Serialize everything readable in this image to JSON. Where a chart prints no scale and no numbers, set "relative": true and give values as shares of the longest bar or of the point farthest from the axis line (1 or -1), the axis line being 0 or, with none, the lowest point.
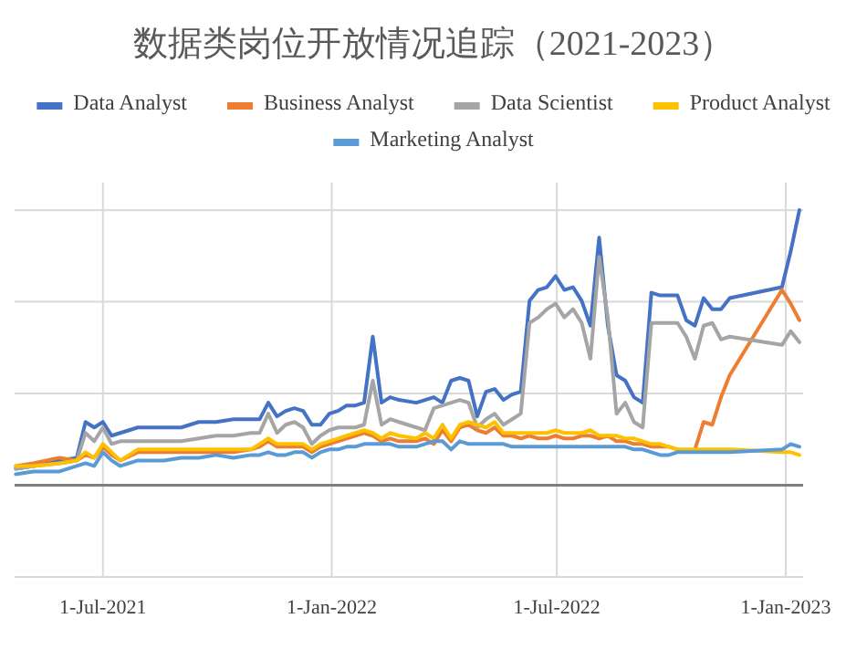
{
  "chart_data": {
    "type": "line",
    "title": "数据类岗位开放情况追踪（2021-2023）",
    "relative": true,
    "grid": true,
    "legend": "top",
    "line_style": "solid",
    "x": [
      "2021-04-22",
      "2021-05-06",
      "2021-05-27",
      "2021-06-10",
      "2021-06-17",
      "2021-06-24",
      "2021-07-01",
      "2021-07-08",
      "2021-07-15",
      "2021-07-29",
      "2021-08-19",
      "2021-09-02",
      "2021-09-16",
      "2021-09-30",
      "2021-10-14",
      "2021-10-28",
      "2021-11-04",
      "2021-11-11",
      "2021-11-18",
      "2021-11-25",
      "2021-12-02",
      "2021-12-09",
      "2021-12-16",
      "2021-12-23",
      "2021-12-30",
      "2022-01-06",
      "2022-01-13",
      "2022-01-20",
      "2022-01-27",
      "2022-02-03",
      "2022-02-10",
      "2022-02-17",
      "2022-02-24",
      "2022-03-10",
      "2022-03-17",
      "2022-03-24",
      "2022-03-31",
      "2022-04-07",
      "2022-04-14",
      "2022-04-21",
      "2022-04-28",
      "2022-05-05",
      "2022-05-12",
      "2022-05-19",
      "2022-05-26",
      "2022-06-02",
      "2022-06-09",
      "2022-06-16",
      "2022-06-23",
      "2022-06-30",
      "2022-07-07",
      "2022-07-14",
      "2022-07-21",
      "2022-07-28",
      "2022-08-04",
      "2022-08-11",
      "2022-08-18",
      "2022-08-25",
      "2022-09-01",
      "2022-09-08",
      "2022-09-15",
      "2022-09-22",
      "2022-09-29",
      "2022-10-06",
      "2022-10-13",
      "2022-10-20",
      "2022-10-27",
      "2022-11-03",
      "2022-11-10",
      "2022-11-17",
      "2022-12-29",
      "2023-01-05",
      "2023-01-12"
    ],
    "xlim": [
      "2021-04-21",
      "2023-01-15"
    ],
    "xticks": [
      {
        "value": "2021-07-01",
        "label": "1-Jul-2021"
      },
      {
        "value": "2022-01-01",
        "label": "1-Jan-2022"
      },
      {
        "value": "2022-07-01",
        "label": "1-Jul-2022"
      },
      {
        "value": "2023-01-01",
        "label": "1-Jan-2023"
      }
    ],
    "series": [
      {
        "name": "Data Analyst",
        "color": "#4472c4",
        "values": [
          0.06,
          0.07,
          0.09,
          0.1,
          0.23,
          0.21,
          0.23,
          0.18,
          0.19,
          0.21,
          0.21,
          0.21,
          0.23,
          0.23,
          0.24,
          0.24,
          0.24,
          0.3,
          0.25,
          0.27,
          0.28,
          0.27,
          0.22,
          0.22,
          0.26,
          0.27,
          0.29,
          0.29,
          0.3,
          0.54,
          0.3,
          0.32,
          0.31,
          0.3,
          0.31,
          0.32,
          0.3,
          0.38,
          0.39,
          0.38,
          0.25,
          0.34,
          0.35,
          0.31,
          0.33,
          0.34,
          0.67,
          0.71,
          0.72,
          0.76,
          0.71,
          0.72,
          0.67,
          0.58,
          0.9,
          0.58,
          0.4,
          0.38,
          0.32,
          0.3,
          0.7,
          0.69,
          0.69,
          0.69,
          0.6,
          0.58,
          0.68,
          0.64,
          0.64,
          0.68,
          0.72,
          0.85,
          1.0
        ]
      },
      {
        "name": "Business Analyst",
        "color": "#ed7d31",
        "values": [
          0.07,
          0.08,
          0.1,
          0.09,
          0.11,
          0.1,
          0.14,
          0.11,
          0.09,
          0.12,
          0.12,
          0.12,
          0.12,
          0.12,
          0.12,
          0.13,
          0.14,
          0.16,
          0.14,
          0.14,
          0.14,
          0.14,
          0.12,
          0.14,
          0.15,
          0.16,
          0.17,
          0.18,
          0.19,
          0.18,
          0.16,
          0.17,
          0.16,
          0.16,
          0.17,
          0.15,
          0.2,
          0.16,
          0.21,
          0.22,
          0.2,
          0.19,
          0.21,
          0.18,
          0.18,
          0.17,
          0.18,
          0.17,
          0.17,
          0.18,
          0.17,
          0.17,
          0.18,
          0.18,
          0.17,
          0.18,
          0.16,
          0.16,
          0.15,
          0.15,
          0.14,
          0.14,
          0.14,
          0.13,
          0.12,
          0.13,
          0.23,
          0.22,
          0.32,
          0.4,
          0.71,
          0.66,
          0.6
        ]
      },
      {
        "name": "Data Scientist",
        "color": "#a5a5a5",
        "values": [
          0.06,
          0.07,
          0.08,
          0.09,
          0.19,
          0.16,
          0.21,
          0.15,
          0.16,
          0.16,
          0.16,
          0.16,
          0.17,
          0.18,
          0.18,
          0.19,
          0.19,
          0.26,
          0.19,
          0.22,
          0.23,
          0.21,
          0.15,
          0.18,
          0.2,
          0.21,
          0.21,
          0.21,
          0.22,
          0.38,
          0.22,
          0.24,
          0.23,
          0.21,
          0.2,
          0.28,
          0.29,
          0.3,
          0.31,
          0.3,
          0.21,
          0.24,
          0.26,
          0.22,
          0.24,
          0.26,
          0.59,
          0.61,
          0.64,
          0.66,
          0.61,
          0.64,
          0.59,
          0.46,
          0.83,
          0.61,
          0.26,
          0.3,
          0.23,
          0.21,
          0.59,
          0.59,
          0.59,
          0.59,
          0.54,
          0.46,
          0.58,
          0.59,
          0.53,
          0.54,
          0.51,
          0.56,
          0.52
        ]
      },
      {
        "name": "Product Analyst",
        "color": "#ffc000",
        "values": [
          0.07,
          0.07,
          0.08,
          0.09,
          0.12,
          0.1,
          0.15,
          0.12,
          0.09,
          0.13,
          0.13,
          0.13,
          0.13,
          0.13,
          0.13,
          0.13,
          0.15,
          0.17,
          0.15,
          0.15,
          0.15,
          0.15,
          0.13,
          0.15,
          0.16,
          0.17,
          0.18,
          0.19,
          0.2,
          0.19,
          0.17,
          0.19,
          0.18,
          0.17,
          0.19,
          0.17,
          0.22,
          0.17,
          0.22,
          0.23,
          0.22,
          0.21,
          0.23,
          0.19,
          0.19,
          0.19,
          0.19,
          0.19,
          0.19,
          0.2,
          0.19,
          0.19,
          0.19,
          0.2,
          0.18,
          0.18,
          0.18,
          0.17,
          0.17,
          0.16,
          0.15,
          0.15,
          0.14,
          0.13,
          0.13,
          0.13,
          0.13,
          0.13,
          0.13,
          0.13,
          0.12,
          0.12,
          0.11
        ]
      },
      {
        "name": "Marketing Analyst",
        "color": "#5b9bd5",
        "values": [
          0.04,
          0.05,
          0.05,
          0.07,
          0.08,
          0.07,
          0.12,
          0.09,
          0.07,
          0.09,
          0.09,
          0.1,
          0.1,
          0.11,
          0.1,
          0.11,
          0.11,
          0.12,
          0.11,
          0.11,
          0.12,
          0.12,
          0.1,
          0.12,
          0.13,
          0.13,
          0.14,
          0.14,
          0.15,
          0.15,
          0.15,
          0.15,
          0.14,
          0.14,
          0.15,
          0.16,
          0.16,
          0.13,
          0.16,
          0.15,
          0.15,
          0.15,
          0.15,
          0.15,
          0.14,
          0.14,
          0.14,
          0.14,
          0.14,
          0.14,
          0.14,
          0.14,
          0.14,
          0.14,
          0.14,
          0.14,
          0.14,
          0.14,
          0.13,
          0.13,
          0.12,
          0.11,
          0.11,
          0.12,
          0.12,
          0.12,
          0.12,
          0.12,
          0.12,
          0.12,
          0.13,
          0.15,
          0.14
        ]
      }
    ]
  }
}
